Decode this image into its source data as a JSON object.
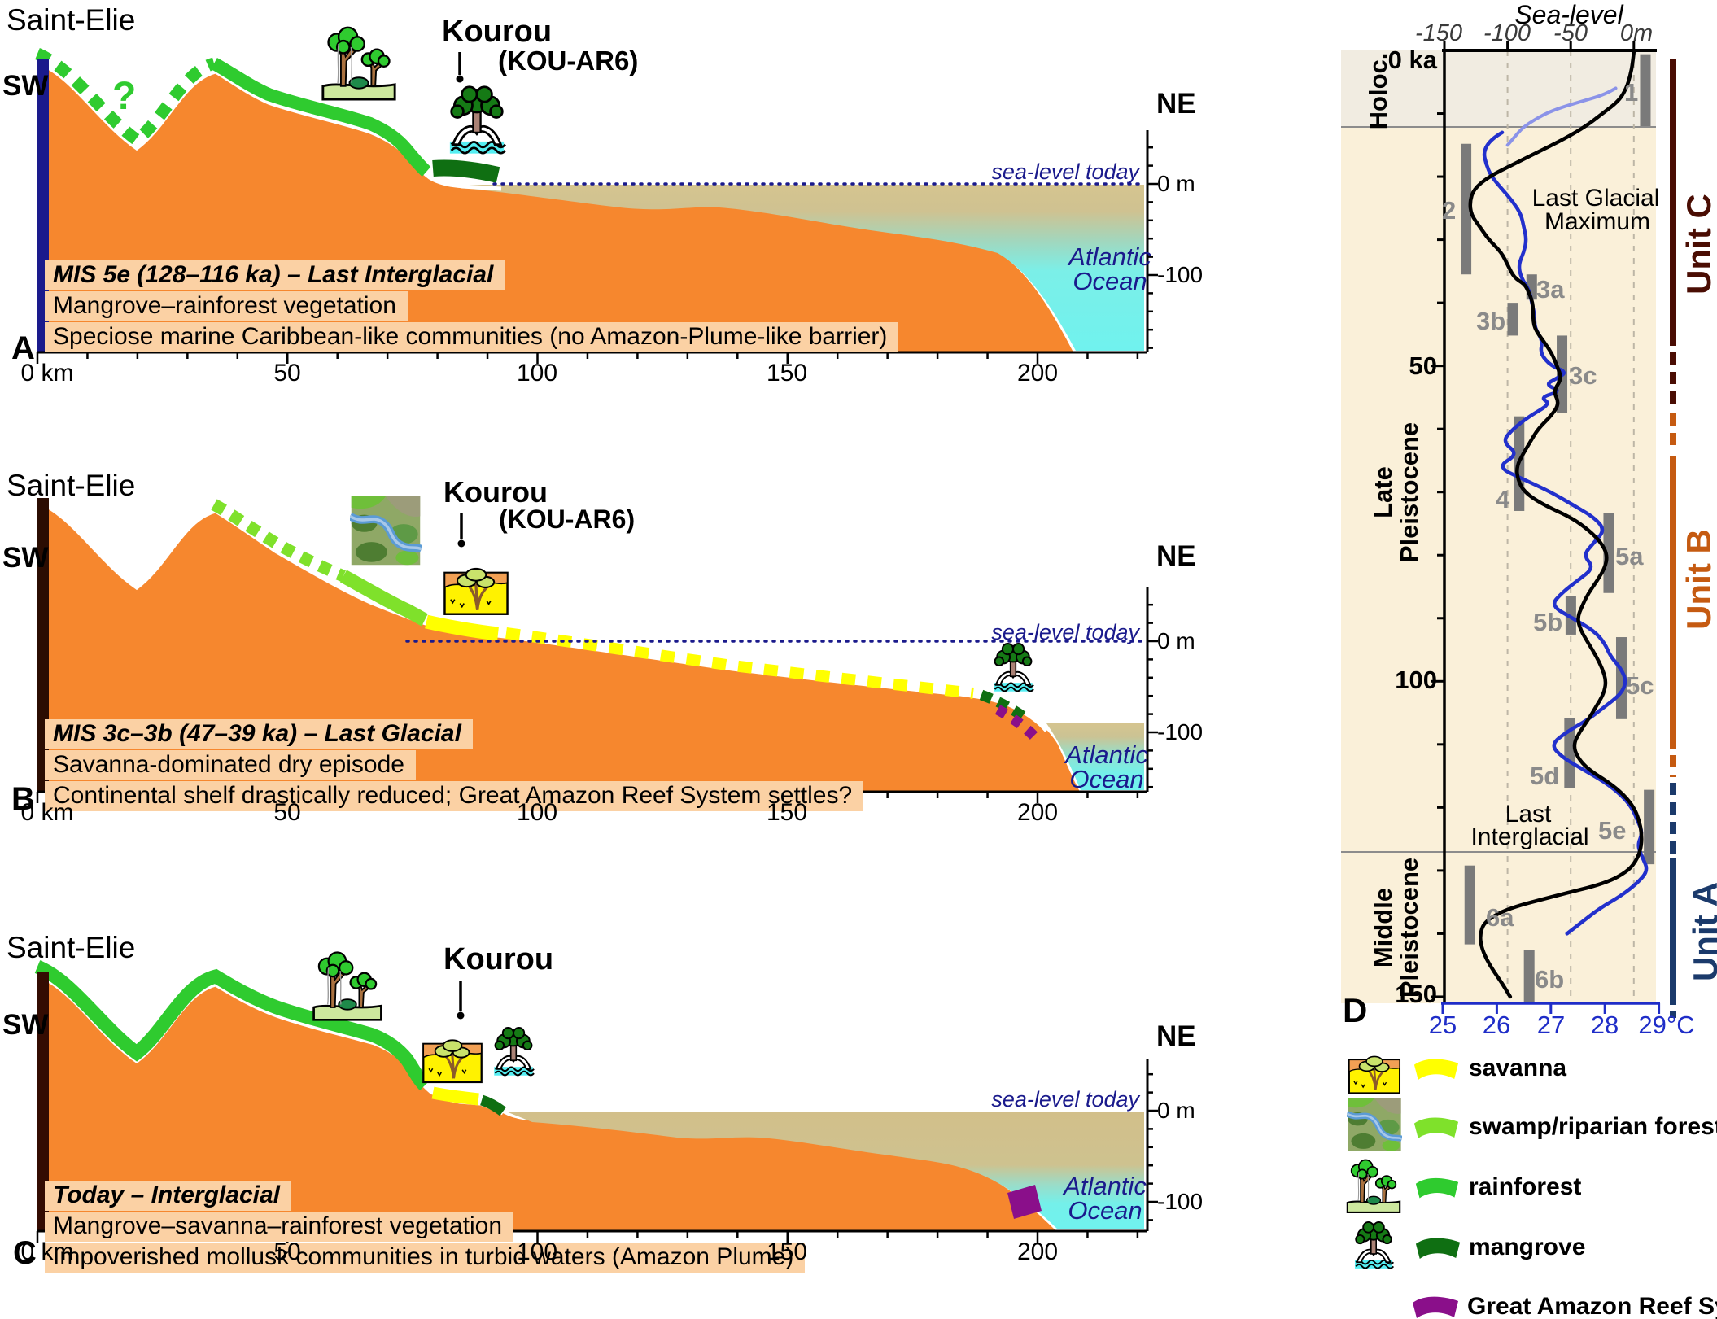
{
  "shared": {
    "saint_elie": "Saint-Elie",
    "sw": "SW",
    "ne": "NE",
    "kourou": "Kourou",
    "kou_ar6": "(KOU-AR6)",
    "sea_level_today": "sea-level today",
    "zero_m": "0 m",
    "minus_100": "-100",
    "atlantic": "Atlantic",
    "ocean": "Ocean"
  },
  "km_axis": [
    "0 km",
    "50",
    "100",
    "150",
    "200"
  ],
  "panelA": {
    "letter": "A",
    "question": "?",
    "cap1": "MIS 5e (128–116 ka) – Last Interglacial",
    "cap2": "Mangrove–rainforest vegetation",
    "cap3": "Speciose marine Caribbean-like communities (no Amazon-Plume-like barrier)"
  },
  "panelB": {
    "letter": "B",
    "cap1": "MIS 3c–3b (47–39 ka) – Last Glacial",
    "cap2": "Savanna-dominated dry episode",
    "cap3": "Continental shelf drastically reduced; Great Amazon Reef System settles?"
  },
  "panelC": {
    "letter": "C",
    "cap1": "Today – Interglacial",
    "cap2": "Mangrove–savanna–rainforest vegetation",
    "cap3": "Impoverished mollusk communities in turbid waters (Amazon Plume)"
  },
  "panelD": {
    "letter": "D",
    "title": "Sea-level",
    "sl_ticks": [
      "-150",
      "-100",
      "-50",
      "0m"
    ],
    "age0": "0 ka",
    "age50": "50",
    "age100": "100",
    "age150": "150",
    "temp_ticks": [
      "25",
      "26",
      "27",
      "28",
      "29°C"
    ],
    "holoc": "Holoc.",
    "late1": "Late",
    "late2": "Pleistocene",
    "middle1": "Middle",
    "middle2": "Pleistocene",
    "lgm1": "Last Glacial",
    "lgm2": "Maximum",
    "li1": "Last",
    "li2": "Interglacial",
    "unitC": "Unit C",
    "unitB": "Unit B",
    "unitA": "Unit A"
  },
  "legend": {
    "items": [
      {
        "label": "savanna",
        "color": "#ffff00",
        "icon": "savanna-icon"
      },
      {
        "label": "swamp/riparian forest",
        "color": "#7fe12b",
        "icon": "swamp-icon"
      },
      {
        "label": "rainforest",
        "color": "#2fcb2f",
        "icon": "rainforest-icon"
      },
      {
        "label": "mangrove",
        "color": "#0f6f12",
        "icon": "mangrove-icon"
      },
      {
        "label": "Great Amazon Reef System",
        "color": "#8a0f8a",
        "icon": null
      }
    ]
  },
  "colors": {
    "terrain_orange": "#f6872e",
    "caption_peach": "#fbd1a4",
    "rainforest_green": "#2fcb2f",
    "swamp_green": "#7fe12b",
    "mangrove_green": "#0f6f12",
    "savanna_yellow": "#ffff00",
    "reef_purple": "#8a0f8a",
    "ocean_cyan": "#70f2ee",
    "plume_tan": "#d5c48f",
    "navy_text": "#1a1a8c",
    "unit_c": "#4a0d03",
    "unit_b": "#c55a11",
    "unit_a": "#1b3a6b",
    "mis_bar_gray": "#7a7a7a",
    "cream_bg": "#faf0d9",
    "holocene_bg": "#f1ece1",
    "sst_blue": "#2230cc",
    "sst_holocene_blue": "#8b93e8"
  },
  "chart_data": {
    "type": "line",
    "title": "Sea-level",
    "orientation": "vertical-age-axis",
    "age_axis": {
      "label_top": "0 ka",
      "ticks": [
        0,
        50,
        100,
        150
      ],
      "range": [
        0,
        151
      ],
      "unit": "ka"
    },
    "sea_level_axis": {
      "ticks": [
        -150,
        -100,
        -50,
        0
      ],
      "unit": "m"
    },
    "temperature_axis": {
      "ticks": [
        25,
        26,
        27,
        28,
        29
      ],
      "unit": "°C"
    },
    "annotations": [
      "Last Glacial Maximum",
      "Last Interglacial"
    ],
    "epochs": [
      {
        "name": "Holoc.",
        "age_start": 0,
        "age_end": 12
      },
      {
        "name": "Late Pleistocene",
        "age_start": 12,
        "age_end": 127
      },
      {
        "name": "Middle Pleistocene",
        "age_start": 127,
        "age_end": 151
      }
    ],
    "units": [
      {
        "name": "Unit C",
        "age_start": 1,
        "age_end": 56
      },
      {
        "name": "Unit B",
        "age_start": 57,
        "age_end": 121
      },
      {
        "name": "Unit A",
        "age_start": 116,
        "age_end": 154
      }
    ],
    "series": [
      {
        "name": "sea_level_m",
        "color": "#000000",
        "points": [
          [
            0,
            0
          ],
          [
            2,
            -1
          ],
          [
            4,
            -3
          ],
          [
            6,
            -6
          ],
          [
            8,
            -12
          ],
          [
            10,
            -25
          ],
          [
            12,
            -38
          ],
          [
            14,
            -55
          ],
          [
            16,
            -75
          ],
          [
            18,
            -95
          ],
          [
            20,
            -115
          ],
          [
            22,
            -127
          ],
          [
            24,
            -130
          ],
          [
            26,
            -129
          ],
          [
            28,
            -122
          ],
          [
            30,
            -115
          ],
          [
            32,
            -105
          ],
          [
            34,
            -100
          ],
          [
            36,
            -95
          ],
          [
            37,
            -87
          ],
          [
            38,
            -84
          ],
          [
            40,
            -80
          ],
          [
            42,
            -80
          ],
          [
            44,
            -79
          ],
          [
            46,
            -72
          ],
          [
            48,
            -65
          ],
          [
            50,
            -61
          ],
          [
            52,
            -57
          ],
          [
            54,
            -64
          ],
          [
            56,
            -59
          ],
          [
            58,
            -66
          ],
          [
            60,
            -76
          ],
          [
            62,
            -82
          ],
          [
            64,
            -88
          ],
          [
            66,
            -93
          ],
          [
            68,
            -92
          ],
          [
            70,
            -87
          ],
          [
            72,
            -72
          ],
          [
            74,
            -50
          ],
          [
            76,
            -36
          ],
          [
            78,
            -26
          ],
          [
            80,
            -21
          ],
          [
            82,
            -23
          ],
          [
            84,
            -29
          ],
          [
            86,
            -36
          ],
          [
            88,
            -41
          ],
          [
            90,
            -45
          ],
          [
            92,
            -42
          ],
          [
            94,
            -36
          ],
          [
            96,
            -30
          ],
          [
            98,
            -25
          ],
          [
            100,
            -22
          ],
          [
            102,
            -24
          ],
          [
            104,
            -30
          ],
          [
            106,
            -36
          ],
          [
            108,
            -43
          ],
          [
            110,
            -48
          ],
          [
            112,
            -45
          ],
          [
            114,
            -36
          ],
          [
            116,
            -20
          ],
          [
            118,
            -8
          ],
          [
            120,
            0
          ],
          [
            122,
            4
          ],
          [
            124,
            6
          ],
          [
            126,
            6
          ],
          [
            128,
            3
          ],
          [
            130,
            -4
          ],
          [
            132,
            -22
          ],
          [
            134,
            -62
          ],
          [
            136,
            -100
          ],
          [
            138,
            -118
          ],
          [
            140,
            -122
          ],
          [
            142,
            -121
          ],
          [
            144,
            -117
          ],
          [
            146,
            -111
          ],
          [
            148,
            -104
          ],
          [
            150,
            -98
          ]
        ]
      },
      {
        "name": "sst_C",
        "color": "#2230cc",
        "points": [
          [
            13,
            26.1
          ],
          [
            14,
            25.9
          ],
          [
            16,
            25.75
          ],
          [
            18,
            25.8
          ],
          [
            20,
            25.9
          ],
          [
            22,
            26.1
          ],
          [
            24,
            26.3
          ],
          [
            26,
            26.45
          ],
          [
            28,
            26.5
          ],
          [
            30,
            26.55
          ],
          [
            32,
            26.5
          ],
          [
            34,
            26.4
          ],
          [
            36,
            26.45
          ],
          [
            38,
            26.6
          ],
          [
            40,
            26.65
          ],
          [
            42,
            26.7
          ],
          [
            44,
            26.7
          ],
          [
            46,
            26.85
          ],
          [
            48,
            26.8
          ],
          [
            50,
            27.0
          ],
          [
            51,
            27.3
          ],
          [
            52,
            27.1
          ],
          [
            53,
            26.9
          ],
          [
            54,
            27.2
          ],
          [
            55,
            26.8
          ],
          [
            56,
            27.0
          ],
          [
            58,
            26.6
          ],
          [
            60,
            26.3
          ],
          [
            62,
            26.1
          ],
          [
            64,
            26.4
          ],
          [
            66,
            26.0
          ],
          [
            68,
            26.5
          ],
          [
            70,
            27.0
          ],
          [
            72,
            27.4
          ],
          [
            74,
            27.8
          ],
          [
            76,
            28.0
          ],
          [
            78,
            27.8
          ],
          [
            80,
            27.6
          ],
          [
            82,
            27.8
          ],
          [
            84,
            27.5
          ],
          [
            86,
            27.2
          ],
          [
            88,
            27.0
          ],
          [
            90,
            27.4
          ],
          [
            92,
            27.8
          ],
          [
            94,
            28.0
          ],
          [
            96,
            28.1
          ],
          [
            98,
            28.3
          ],
          [
            100,
            28.4
          ],
          [
            102,
            28.3
          ],
          [
            104,
            28.0
          ],
          [
            106,
            27.7
          ],
          [
            108,
            27.3
          ],
          [
            110,
            27.0
          ],
          [
            112,
            27.2
          ],
          [
            114,
            27.6
          ],
          [
            116,
            28.0
          ],
          [
            118,
            28.3
          ],
          [
            120,
            28.5
          ],
          [
            122,
            28.6
          ],
          [
            124,
            28.7
          ],
          [
            126,
            28.6
          ],
          [
            128,
            28.7
          ],
          [
            130,
            28.8
          ],
          [
            132,
            28.6
          ],
          [
            134,
            28.3
          ],
          [
            136,
            27.9
          ],
          [
            138,
            27.6
          ],
          [
            140,
            27.3
          ]
        ]
      },
      {
        "name": "sst_C_holocene",
        "color": "#8b93e8",
        "points": [
          [
            6,
            28.2
          ],
          [
            7,
            28.0
          ],
          [
            8,
            27.6
          ],
          [
            9,
            27.2
          ],
          [
            10,
            26.9
          ],
          [
            12,
            26.5
          ],
          [
            14,
            26.3
          ],
          [
            15,
            26.2
          ]
        ]
      }
    ],
    "mis_stages": [
      {
        "label": "1",
        "sl_m": 9,
        "age_start": 0.6,
        "age_end": 12
      },
      {
        "label": "2",
        "sl_m": -133,
        "age_start": 14.8,
        "age_end": 35.5
      },
      {
        "label": "3a",
        "sl_m": -81,
        "age_start": 35.5,
        "age_end": 39.5
      },
      {
        "label": "3b",
        "sl_m": -96,
        "age_start": 40,
        "age_end": 45.2
      },
      {
        "label": "3c",
        "sl_m": -57,
        "age_start": 45.2,
        "age_end": 57.5
      },
      {
        "label": "4",
        "sl_m": -91,
        "age_start": 58,
        "age_end": 73
      },
      {
        "label": "5a",
        "sl_m": -20,
        "age_start": 73.3,
        "age_end": 86
      },
      {
        "label": "5b",
        "sl_m": -50,
        "age_start": 86.5,
        "age_end": 92.6
      },
      {
        "label": "5c",
        "sl_m": -10,
        "age_start": 93,
        "age_end": 106
      },
      {
        "label": "5d",
        "sl_m": -51,
        "age_start": 105.8,
        "age_end": 116.9
      },
      {
        "label": "5e",
        "sl_m": 12,
        "age_start": 117.2,
        "age_end": 129
      },
      {
        "label": "6a",
        "sl_m": -130,
        "age_start": 129.2,
        "age_end": 141.7
      },
      {
        "label": "6b",
        "sl_m": -83,
        "age_start": 142.6,
        "age_end": 151
      }
    ]
  }
}
